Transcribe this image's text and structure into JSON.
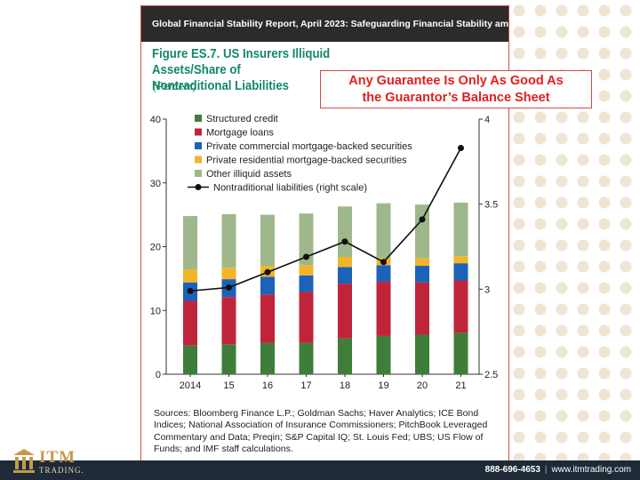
{
  "header": {
    "text": "Global Financial Stability Report, April 2023: Safeguarding Financial Stability amid ..."
  },
  "figure": {
    "title_line1": "Figure ES.7. US Insurers Illiquid Assets/Share of",
    "title_line2": "Nontraditional Liabilities",
    "subtitle": "(Percent)"
  },
  "callout": {
    "line1": "Any Guarantee Is Only As Good As",
    "line2": "the Guarantor’s Balance Sheet"
  },
  "chart_data": {
    "type": "bar",
    "stacked": true,
    "categories": [
      "2014",
      "15",
      "16",
      "17",
      "18",
      "19",
      "20",
      "21"
    ],
    "ylim_left": [
      0,
      40
    ],
    "yticks_left": [
      "0",
      "10",
      "20",
      "30",
      "40"
    ],
    "ylim_right": [
      2.5,
      4
    ],
    "yticks_right": [
      "2.5",
      "3",
      "3.5",
      "4"
    ],
    "legend_position": "top-left",
    "grid": false,
    "series": [
      {
        "name": "Structured credit",
        "color": "#3f7d3a",
        "values": [
          4.5,
          4.7,
          4.9,
          4.9,
          5.6,
          6.0,
          6.2,
          6.5
        ]
      },
      {
        "name": "Mortgage loans",
        "color": "#c0243a",
        "values": [
          7.0,
          7.4,
          7.6,
          8.0,
          8.6,
          8.5,
          8.2,
          8.2
        ]
      },
      {
        "name": "Private commercial mortgage-backed securities",
        "color": "#1b63b8",
        "values": [
          2.9,
          2.8,
          2.8,
          2.6,
          2.6,
          2.6,
          2.6,
          2.7
        ]
      },
      {
        "name": "Private residential mortgage-backed securities",
        "color": "#f3b428",
        "values": [
          2.0,
          1.8,
          1.7,
          1.6,
          1.6,
          1.1,
          1.2,
          1.1
        ]
      },
      {
        "name": "Other illiquid assets",
        "color": "#9fb88b",
        "values": [
          8.4,
          8.4,
          8.0,
          8.1,
          7.9,
          8.6,
          8.4,
          8.4
        ]
      }
    ],
    "line_series": {
      "name": "Nontraditional liabilities (right scale)",
      "color": "#111111",
      "axis": "right",
      "values": [
        2.99,
        3.01,
        3.1,
        3.19,
        3.28,
        3.16,
        3.41,
        3.83
      ]
    }
  },
  "sources": {
    "text": "Sources: Bloomberg Finance L.P.; Goldman Sachs; Haver Analytics; ICE Bond Indices; National Association of Insurance Commissioners; PitchBook Leveraged Commentary and Data; Preqin; S&P Capital IQ; St. Louis Fed; UBS; US Flow of Funds; and IMF staff calculations."
  },
  "footer": {
    "logo_text": "ITM",
    "logo_subtext": "TRADING.",
    "phone": "888-696-4653",
    "separator": "|",
    "website": "www.itmtrading.com"
  },
  "colors": {
    "title_green": "#14866b",
    "callout_red": "#e0201e",
    "footer_navy": "#1f2a38",
    "logo_gold": "#c59a4a"
  }
}
